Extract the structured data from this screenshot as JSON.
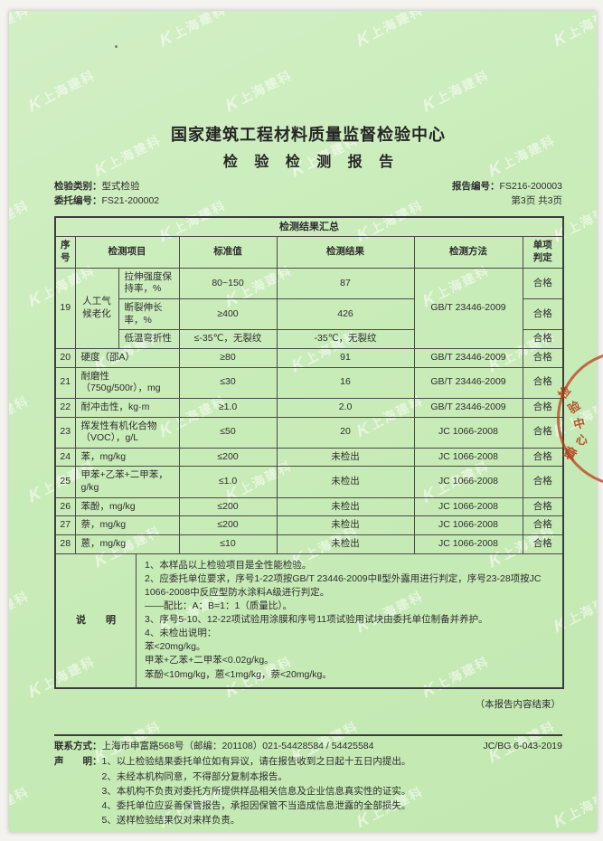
{
  "colors": {
    "paper_green": "#c9ecb9",
    "stamp_red": "#b03818",
    "ink": "#2d2d2d",
    "watermark_white": "rgba(255,255,255,0.55)"
  },
  "watermark": {
    "logo_char": "K",
    "text": "上海建科"
  },
  "stamp": {
    "chars": [
      "检",
      "验",
      "中",
      "心",
      "章"
    ]
  },
  "page": {
    "title": "国家建筑工程材料质量监督检验中心",
    "subtitle": "检 验 检 测 报 告",
    "meta": {
      "category_label": "检验类别：",
      "category_value": "型式检验",
      "commission_label": "委托编号：",
      "commission_value": "FS21-200002",
      "report_no_label": "报告编号：",
      "report_no_value": "FS216-200003",
      "page_info": "第3页 共3页"
    }
  },
  "table": {
    "caption": "检测结果汇总",
    "col_no": "序号",
    "col_item": "检测项目",
    "col_std": "标准值",
    "col_result": "检测结果",
    "col_method": "检测方法",
    "col_verdict": "单项\n判定",
    "r19": {
      "no": "19",
      "category": "人工气候老化",
      "method": "GB/T 23446-2009",
      "sub1": {
        "item": "拉伸强度保持率，%",
        "std": "80~150",
        "result": "87",
        "verdict": "合格"
      },
      "sub2": {
        "item": "断裂伸长率，%",
        "std": "≥400",
        "result": "426",
        "verdict": "合格"
      },
      "sub3": {
        "item": "低温弯折性",
        "std": "≤-35℃，无裂纹",
        "result": "-35℃，无裂纹",
        "verdict": "合格"
      }
    },
    "r20": {
      "no": "20",
      "item": "硬度（邵A）",
      "std": "≥80",
      "result": "91",
      "method": "GB/T 23446-2009",
      "verdict": "合格"
    },
    "r21": {
      "no": "21",
      "item": "耐磨性（750g/500r），mg",
      "std": "≤30",
      "result": "16",
      "method": "GB/T 23446-2009",
      "verdict": "合格"
    },
    "r22": {
      "no": "22",
      "item": "耐冲击性，kg·m",
      "std": "≥1.0",
      "result": "2.0",
      "method": "GB/T 23446-2009",
      "verdict": "合格"
    },
    "r23": {
      "no": "23",
      "item": "挥发性有机化合物（VOC），g/L",
      "std": "≤50",
      "result": "20",
      "method": "JC 1066-2008",
      "verdict": "合格"
    },
    "r24": {
      "no": "24",
      "item": "苯，mg/kg",
      "std": "≤200",
      "result": "未检出",
      "method": "JC 1066-2008",
      "verdict": "合格"
    },
    "r25": {
      "no": "25",
      "item": "甲苯+乙苯+二甲苯，g/kg",
      "std": "≤1.0",
      "result": "未检出",
      "method": "JC 1066-2008",
      "verdict": "合格"
    },
    "r26": {
      "no": "26",
      "item": "苯酚，mg/kg",
      "std": "≤200",
      "result": "未检出",
      "method": "JC 1066-2008",
      "verdict": "合格"
    },
    "r27": {
      "no": "27",
      "item": "萘，mg/kg",
      "std": "≤200",
      "result": "未检出",
      "method": "JC 1066-2008",
      "verdict": "合格"
    },
    "r28": {
      "no": "28",
      "item": "蒽，mg/kg",
      "std": "≤10",
      "result": "未检出",
      "method": "JC 1066-2008",
      "verdict": "合格"
    }
  },
  "notes": {
    "label": "说　　明",
    "lines": [
      "1、本样品以上检验项目是全性能检验。",
      "2、应委托单位要求，序号1-22项按GB/T 23446-2009中Ⅱ型外露用进行判定，序号23-28项按JC 1066-2008中反应型防水涂料A级进行判定。",
      "——配比：A：B=1：1（质量比）。",
      "3、序号5-10、12-22项试验用涂膜和序号11项试验用试块由委托单位制备并养护。",
      "4、未检出说明：",
      "苯<20mg/kg。",
      "甲苯+乙苯+二甲苯<0.02g/kg。",
      "苯酚<10mg/kg，蒽<1mg/kg，萘<20mg/kg。"
    ]
  },
  "footer": {
    "end_note": "（本报告内容结束）",
    "contact_label": "联系方式：",
    "contact_value": "上海市申富路568号（邮编：201108）021-54428584 / 54425584",
    "doc_code": "JC/BG 6-043-2019",
    "statement_label": "声　　明：",
    "statements": [
      "1、以上检验结果委托单位如有异议，请在报告收到之日起十五日内提出。",
      "2、未经本机构同意，不得部分复制本报告。",
      "3、本机构不负责对委托方所提供样品相关信息及企业信息真实性的证实。",
      "4、委托单位应妥善保管报告，承担因保管不当造成信息泄露的全部损失。",
      "5、送样检验结果仅对来样负责。"
    ]
  }
}
